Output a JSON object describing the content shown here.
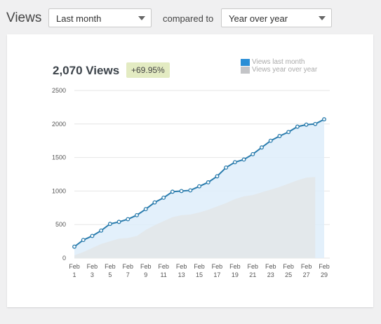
{
  "toolbar": {
    "title": "Views",
    "period_select": "Last month",
    "compared_label": "compared to",
    "compare_select": "Year over year"
  },
  "summary": {
    "total": "2,070 Views",
    "change": "+69.95%"
  },
  "colors": {
    "current_line": "#2a7cad",
    "current_fill": "#deedfa",
    "previous_fill": "#e3e7ea",
    "previous_legend": "#c3c4c7",
    "current_legend": "#2a8ed6",
    "badge": "#e3ebc2"
  },
  "chart_data": {
    "type": "area",
    "title": "",
    "xlabel": "",
    "ylabel": "",
    "ylim": [
      0,
      2500
    ],
    "yticks": [
      0,
      500,
      1000,
      1500,
      2000,
      2500
    ],
    "grid": true,
    "legend_position": "top-right",
    "x": [
      1,
      2,
      3,
      4,
      5,
      6,
      7,
      8,
      9,
      10,
      11,
      12,
      13,
      14,
      15,
      16,
      17,
      18,
      19,
      20,
      21,
      22,
      23,
      24,
      25,
      26,
      27,
      28,
      29
    ],
    "x_tick_labels": [
      {
        "x": 1,
        "month": "Feb",
        "day": "1"
      },
      {
        "x": 3,
        "month": "Feb",
        "day": "3"
      },
      {
        "x": 5,
        "month": "Feb",
        "day": "5"
      },
      {
        "x": 7,
        "month": "Feb",
        "day": "7"
      },
      {
        "x": 9,
        "month": "Feb",
        "day": "9"
      },
      {
        "x": 11,
        "month": "Feb",
        "day": "11"
      },
      {
        "x": 13,
        "month": "Feb",
        "day": "13"
      },
      {
        "x": 15,
        "month": "Feb",
        "day": "15"
      },
      {
        "x": 17,
        "month": "Feb",
        "day": "17"
      },
      {
        "x": 19,
        "month": "Feb",
        "day": "19"
      },
      {
        "x": 21,
        "month": "Feb",
        "day": "21"
      },
      {
        "x": 23,
        "month": "Feb",
        "day": "23"
      },
      {
        "x": 25,
        "month": "Feb",
        "day": "25"
      },
      {
        "x": 27,
        "month": "Feb",
        "day": "27"
      },
      {
        "x": 29,
        "month": "Feb",
        "day": "29"
      }
    ],
    "series": [
      {
        "name": "Views last month",
        "values": [
          170,
          270,
          330,
          410,
          510,
          540,
          580,
          640,
          730,
          830,
          900,
          990,
          1000,
          1010,
          1070,
          1130,
          1220,
          1350,
          1430,
          1470,
          1550,
          1650,
          1750,
          1820,
          1880,
          1960,
          1990,
          2000,
          2070
        ]
      },
      {
        "name": "Views year over year",
        "values": [
          40,
          90,
          150,
          210,
          250,
          290,
          300,
          330,
          420,
          490,
          550,
          610,
          640,
          650,
          680,
          720,
          770,
          820,
          880,
          920,
          940,
          980,
          1020,
          1060,
          1110,
          1160,
          1200,
          1210,
          null
        ]
      }
    ]
  }
}
